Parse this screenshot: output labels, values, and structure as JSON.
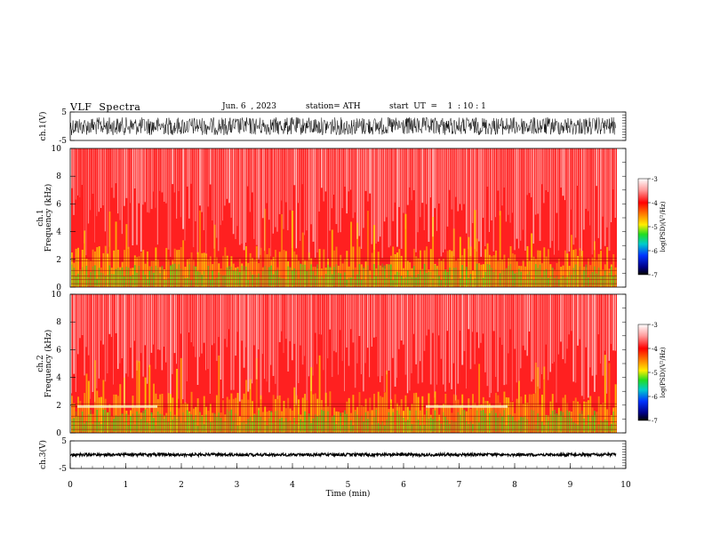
{
  "header": {
    "title": "VLF  Spectra",
    "date": "Jun. 6  , 2023",
    "station": "station= ATH",
    "start": "start  UT  =    1  : 10 : 1"
  },
  "chart_data": [
    {
      "type": "line",
      "name": "ch1-waveform",
      "ylabel": "ch.1(V)",
      "ylim": [
        -5,
        5
      ],
      "yticks": [
        "5",
        "-5"
      ]
    },
    {
      "type": "heatmap",
      "name": "ch1-spectrogram",
      "ylabel": "ch.1\nFrequency  (kHz)",
      "ylim": [
        0,
        10
      ],
      "yticks": [
        "0",
        "2",
        "4",
        "6",
        "8",
        "10"
      ],
      "colorbar": {
        "label": "log(PSD)(V²/Hz)",
        "ticks": [
          "-3",
          "-4",
          "-5",
          "-6",
          "-7"
        ],
        "range": [
          -7,
          -3
        ]
      }
    },
    {
      "type": "heatmap",
      "name": "ch2-spectrogram",
      "ylabel": "ch.2\nFrequency  (kHz)",
      "ylim": [
        0,
        10
      ],
      "yticks": [
        "0",
        "2",
        "4",
        "6",
        "8",
        "10"
      ],
      "colorbar": {
        "label": "log(PSD)(V²/Hz)",
        "ticks": [
          "-3",
          "-4",
          "-5",
          "-6",
          "-7"
        ],
        "range": [
          -7,
          -3
        ]
      }
    },
    {
      "type": "line",
      "name": "ch3-waveform",
      "ylabel": "ch.3(V)",
      "ylim": [
        -5,
        5
      ],
      "yticks": [
        "5",
        "-5"
      ]
    }
  ],
  "xaxis": {
    "label": "Time  (min)",
    "xlim": [
      0,
      10
    ],
    "ticks": [
      "0",
      "1",
      "2",
      "3",
      "4",
      "5",
      "6",
      "7",
      "8",
      "9",
      "10"
    ]
  },
  "colors": {
    "background_red": "#ff1a1a",
    "high": "#ffffff",
    "mid": "#ffee00",
    "low": "#22dd22",
    "lowest": "#000000"
  }
}
